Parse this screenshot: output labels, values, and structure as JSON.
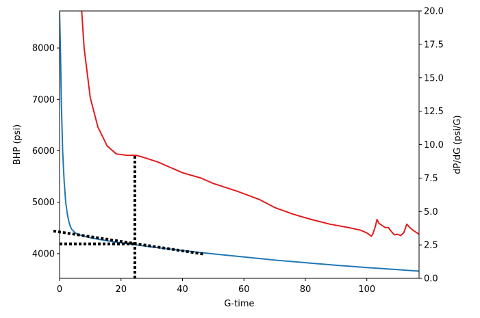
{
  "chart_data": {
    "type": "line",
    "xlabel": "G-time",
    "ylabel_left": "BHP (psi)",
    "ylabel_right": "dP/dG (psi/G)",
    "xlim": [
      0,
      117
    ],
    "ylim_left": [
      3520,
      8720
    ],
    "ylim_right": [
      0,
      20
    ],
    "x_ticks": [
      "0",
      "20",
      "40",
      "60",
      "80",
      "100"
    ],
    "x_tick_values": [
      0,
      20,
      40,
      60,
      80,
      100
    ],
    "y_left_ticks": [
      "4000",
      "5000",
      "6000",
      "7000",
      "8000"
    ],
    "y_left_tick_values": [
      4000,
      5000,
      6000,
      7000,
      8000
    ],
    "y_right_ticks": [
      "0.0",
      "2.5",
      "5.0",
      "7.5",
      "10.0",
      "12.5",
      "15.0",
      "17.5",
      "20.0"
    ],
    "y_right_tick_values": [
      0,
      2.5,
      5,
      7.5,
      10,
      12.5,
      15,
      17.5,
      20
    ],
    "grid": false,
    "series": [
      {
        "axis": "left",
        "color": "#1f77b4",
        "points": [
          [
            0,
            8700
          ],
          [
            0.3,
            7900
          ],
          [
            0.6,
            6900
          ],
          [
            1,
            6000
          ],
          [
            1.5,
            5400
          ],
          [
            2,
            5000
          ],
          [
            2.5,
            4780
          ],
          [
            3,
            4630
          ],
          [
            3.5,
            4530
          ],
          [
            4,
            4470
          ],
          [
            5,
            4410
          ],
          [
            6,
            4375
          ],
          [
            8,
            4340
          ],
          [
            10,
            4310
          ],
          [
            15,
            4255
          ],
          [
            20,
            4210
          ],
          [
            25,
            4170
          ],
          [
            30,
            4130
          ],
          [
            40,
            4060
          ],
          [
            50,
            3995
          ],
          [
            60,
            3935
          ],
          [
            70,
            3875
          ],
          [
            80,
            3825
          ],
          [
            90,
            3775
          ],
          [
            100,
            3730
          ],
          [
            110,
            3690
          ],
          [
            117,
            3660
          ]
        ]
      },
      {
        "axis": "right",
        "color": "#e31a1c",
        "points": [
          [
            7.2,
            20
          ],
          [
            8,
            17.2
          ],
          [
            10,
            13.5
          ],
          [
            12.5,
            11.3
          ],
          [
            15.5,
            9.9
          ],
          [
            18.5,
            9.3
          ],
          [
            22,
            9.2
          ],
          [
            25,
            9.2
          ],
          [
            28,
            9.0
          ],
          [
            32,
            8.7
          ],
          [
            36,
            8.3
          ],
          [
            40,
            7.9
          ],
          [
            46,
            7.5
          ],
          [
            50,
            7.1
          ],
          [
            58,
            6.5
          ],
          [
            65,
            5.9
          ],
          [
            70,
            5.3
          ],
          [
            76,
            4.8
          ],
          [
            82,
            4.4
          ],
          [
            88,
            4.05
          ],
          [
            94,
            3.8
          ],
          [
            98,
            3.6
          ],
          [
            100,
            3.4
          ],
          [
            101.5,
            3.15
          ],
          [
            102,
            3.35
          ],
          [
            102.8,
            3.9
          ],
          [
            103.3,
            4.4
          ],
          [
            104,
            4.1
          ],
          [
            105,
            3.95
          ],
          [
            106,
            3.8
          ],
          [
            107,
            3.8
          ],
          [
            108,
            3.5
          ],
          [
            109,
            3.25
          ],
          [
            110,
            3.3
          ],
          [
            111,
            3.2
          ],
          [
            112,
            3.4
          ],
          [
            113,
            4.05
          ],
          [
            114,
            3.8
          ],
          [
            115,
            3.6
          ],
          [
            116,
            3.45
          ],
          [
            117,
            3.3
          ]
        ]
      }
    ],
    "annotations": [
      {
        "kind": "dotted-line",
        "axis": "left",
        "from": [
          -2,
          4440
        ],
        "to": [
          47,
          3990
        ]
      },
      {
        "kind": "dotted-line",
        "axis": "left",
        "from": [
          0,
          4190
        ],
        "to": [
          25,
          4190
        ]
      },
      {
        "kind": "dotted-line",
        "axis": "right",
        "from": [
          24.5,
          9.15
        ],
        "to": [
          24.5,
          0
        ]
      }
    ]
  }
}
